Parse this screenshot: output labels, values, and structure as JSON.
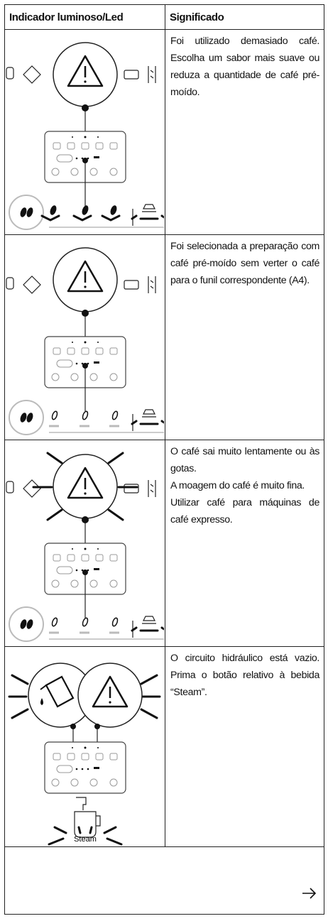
{
  "header": {
    "indicator": "Indicador luminoso/Led",
    "meaning": "Significado"
  },
  "rows": [
    {
      "meaning": [
        "Foi utilizado demasiado café. Escolha um sabor mais suave ou reduza a quantidade de café pré-moído."
      ]
    },
    {
      "meaning": [
        "Foi selecionada a preparação com café pré-moído sem verter o café para o funil correspondente (A4)."
      ]
    },
    {
      "meaning": [
        "O café sai muito lentamente ou às gotas.",
        "A moagem do café é muito fina.",
        "Utilizar café para máquinas de café expresso."
      ]
    },
    {
      "meaning": [
        "O circuito hidráulico está vazio. Prima o botão relativo à bebida “Steam”."
      ],
      "illustration_label": "Steam"
    }
  ]
}
